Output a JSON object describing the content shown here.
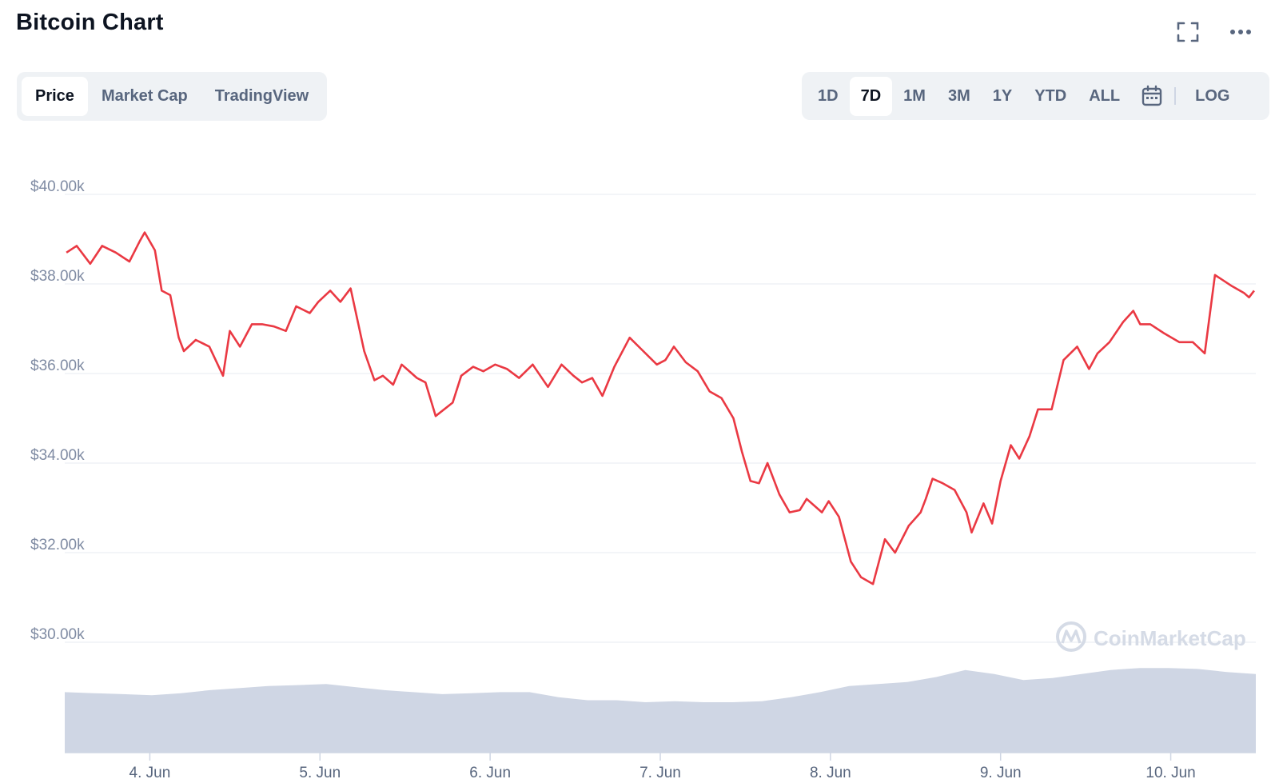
{
  "header": {
    "title": "Bitcoin Chart",
    "icons": [
      "fullscreen-icon",
      "more-icon"
    ]
  },
  "view_tabs": [
    {
      "label": "Price",
      "active": true
    },
    {
      "label": "Market Cap",
      "active": false
    },
    {
      "label": "TradingView",
      "active": false
    }
  ],
  "range_tabs": [
    {
      "label": "1D",
      "active": false
    },
    {
      "label": "7D",
      "active": true
    },
    {
      "label": "1M",
      "active": false
    },
    {
      "label": "3M",
      "active": false
    },
    {
      "label": "1Y",
      "active": false
    },
    {
      "label": "YTD",
      "active": false
    },
    {
      "label": "ALL",
      "active": false
    }
  ],
  "calendar_icon": "calendar-icon",
  "log_label": "LOG",
  "watermark": "CoinMarketCap",
  "colors": {
    "price_line": "#ea3943",
    "volume_fill": "#cfd6e4",
    "grid": "#eff2f5",
    "axis_text": "#7f8ba3"
  },
  "chart_data": {
    "type": "line",
    "title": "",
    "xlabel": "",
    "ylabel": "",
    "ylim": [
      28000,
      40000
    ],
    "yticks": [
      {
        "value": 30000,
        "label": "$30.00k"
      },
      {
        "value": 32000,
        "label": "$32.00k"
      },
      {
        "value": 34000,
        "label": "$34.00k"
      },
      {
        "value": 36000,
        "label": "$36.00k"
      },
      {
        "value": 38000,
        "label": "$38.00k"
      },
      {
        "value": 40000,
        "label": "$40.00k"
      }
    ],
    "xlim": [
      3.5,
      10.5
    ],
    "xticks": [
      {
        "value": 4,
        "label": "4. Jun"
      },
      {
        "value": 5,
        "label": "5. Jun"
      },
      {
        "value": 6,
        "label": "6. Jun"
      },
      {
        "value": 7,
        "label": "7. Jun"
      },
      {
        "value": 8,
        "label": "8. Jun"
      },
      {
        "value": 9,
        "label": "9. Jun"
      },
      {
        "value": 10,
        "label": "10. Jun"
      }
    ],
    "grid": true,
    "series": [
      {
        "x": [
          3.51,
          3.57,
          3.65,
          3.72,
          3.8,
          3.88,
          3.94,
          3.97,
          4.03,
          4.07,
          4.12,
          4.17,
          4.2,
          4.27,
          4.35,
          4.43,
          4.47,
          4.53,
          4.6,
          4.66,
          4.73,
          4.8,
          4.86,
          4.94,
          4.99,
          5.06,
          5.12,
          5.18,
          5.26,
          5.32,
          5.37,
          5.43,
          5.48,
          5.57,
          5.62,
          5.68,
          5.78,
          5.83,
          5.9,
          5.96,
          6.03,
          6.1,
          6.17,
          6.25,
          6.34,
          6.42,
          6.49,
          6.54,
          6.6,
          6.66,
          6.73,
          6.82,
          6.9,
          6.98,
          7.03,
          7.08,
          7.15,
          7.22,
          7.29,
          7.36,
          7.43,
          7.48,
          7.53,
          7.58,
          7.63,
          7.7,
          7.76,
          7.82,
          7.86,
          7.95,
          7.99,
          8.05,
          8.12,
          8.18,
          8.25,
          8.32,
          8.38,
          8.46,
          8.53,
          8.56,
          8.6,
          8.66,
          8.73,
          8.8,
          8.83,
          8.9,
          8.95,
          9.0,
          9.06,
          9.11,
          9.17,
          9.22,
          9.3,
          9.37,
          9.45,
          9.52,
          9.57,
          9.64,
          9.72,
          9.78,
          9.82,
          9.88,
          9.96,
          10.05,
          10.13,
          10.2,
          10.26,
          10.36,
          10.43,
          10.46,
          10.49
        ],
        "values": [
          38700,
          38850,
          38450,
          38850,
          38700,
          38500,
          38950,
          39150,
          38750,
          37850,
          37750,
          36800,
          36500,
          36750,
          36600,
          35950,
          36950,
          36600,
          37100,
          37100,
          37050,
          36950,
          37500,
          37350,
          37600,
          37850,
          37600,
          37900,
          36500,
          35850,
          35950,
          35750,
          36200,
          35900,
          35800,
          35050,
          35350,
          35950,
          36150,
          36050,
          36200,
          36100,
          35900,
          36200,
          35700,
          36200,
          35950,
          35800,
          35900,
          35500,
          36150,
          36800,
          36500,
          36200,
          36300,
          36600,
          36250,
          36050,
          35600,
          35450,
          35000,
          34250,
          33600,
          33550,
          34000,
          33300,
          32900,
          32950,
          33200,
          32900,
          33150,
          32800,
          31800,
          31450,
          31300,
          32300,
          32000,
          32600,
          32900,
          33200,
          33650,
          33550,
          33400,
          32900,
          32450,
          33100,
          32650,
          33600,
          34400,
          34100,
          34600,
          35200,
          35200,
          36300,
          36600,
          36100,
          36450,
          36700,
          37150,
          37400,
          37100,
          37100,
          36900,
          36700,
          36700,
          36450,
          38200,
          37950,
          37800,
          37700,
          37850
        ]
      }
    ],
    "volume_relative": [
      0.6,
      0.59,
      0.58,
      0.57,
      0.59,
      0.62,
      0.64,
      0.66,
      0.67,
      0.68,
      0.65,
      0.62,
      0.6,
      0.58,
      0.59,
      0.6,
      0.6,
      0.55,
      0.52,
      0.52,
      0.5,
      0.51,
      0.5,
      0.5,
      0.51,
      0.55,
      0.6,
      0.66,
      0.68,
      0.7,
      0.75,
      0.82,
      0.78,
      0.72,
      0.74,
      0.78,
      0.82,
      0.84,
      0.84,
      0.83,
      0.8,
      0.78
    ]
  }
}
